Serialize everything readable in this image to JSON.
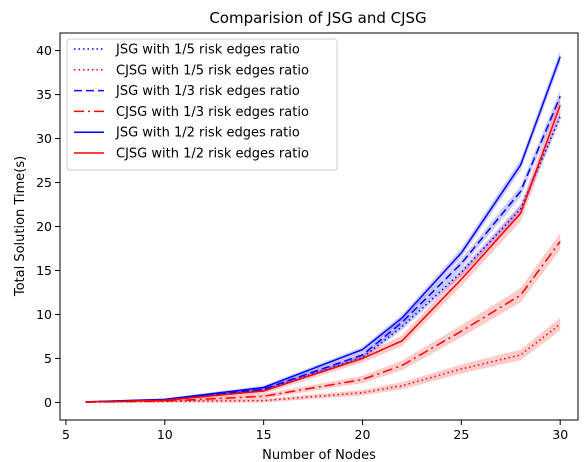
{
  "chart_data": {
    "type": "line",
    "title": "Comparision of JSG and CJSG",
    "xlabel": "Number of Nodes",
    "ylabel": "Total Solution Time(s)",
    "xlim": [
      4.7,
      30.9
    ],
    "ylim": [
      -2.0,
      42.0
    ],
    "xticks": [
      5,
      10,
      15,
      20,
      25,
      30
    ],
    "yticks": [
      0,
      5,
      10,
      15,
      20,
      25,
      30,
      35,
      40
    ],
    "grid": false,
    "legend_position": "upper-left",
    "x": [
      6,
      10,
      15,
      20,
      22,
      25,
      28,
      30
    ],
    "series": [
      {
        "name": "JSG with 1/5 risk edges ratio",
        "color": "#0000ff",
        "style": "dotted",
        "values": [
          0.05,
          0.3,
          1.4,
          5.1,
          8.6,
          14.8,
          22.0,
          32.5
        ],
        "band": 0.5
      },
      {
        "name": "CJSG with 1/5 risk edges ratio",
        "color": "#ff0000",
        "style": "dotted",
        "values": [
          0.02,
          0.1,
          0.2,
          1.1,
          1.9,
          3.8,
          5.4,
          8.9
        ],
        "band": 0.6
      },
      {
        "name": "JSG with 1/3 risk edges ratio",
        "color": "#0000ff",
        "style": "dashed",
        "values": [
          0.05,
          0.3,
          1.5,
          5.4,
          9.1,
          15.8,
          24.0,
          34.8
        ],
        "band": 0.6
      },
      {
        "name": "CJSG with 1/3 risk edges ratio",
        "color": "#ff0000",
        "style": "dashdot",
        "values": [
          0.03,
          0.15,
          0.7,
          2.6,
          4.2,
          8.1,
          12.2,
          18.3
        ],
        "band": 0.8
      },
      {
        "name": "JSG with 1/2 risk edges ratio",
        "color": "#0000ff",
        "style": "solid",
        "values": [
          0.06,
          0.35,
          1.7,
          6.0,
          9.6,
          17.0,
          27.0,
          39.3
        ],
        "band": 0.6
      },
      {
        "name": "CJSG with 1/2 risk edges ratio",
        "color": "#ff0000",
        "style": "solid",
        "values": [
          0.04,
          0.25,
          1.3,
          5.0,
          7.0,
          14.0,
          21.5,
          33.8
        ],
        "band": 0.9
      }
    ]
  }
}
